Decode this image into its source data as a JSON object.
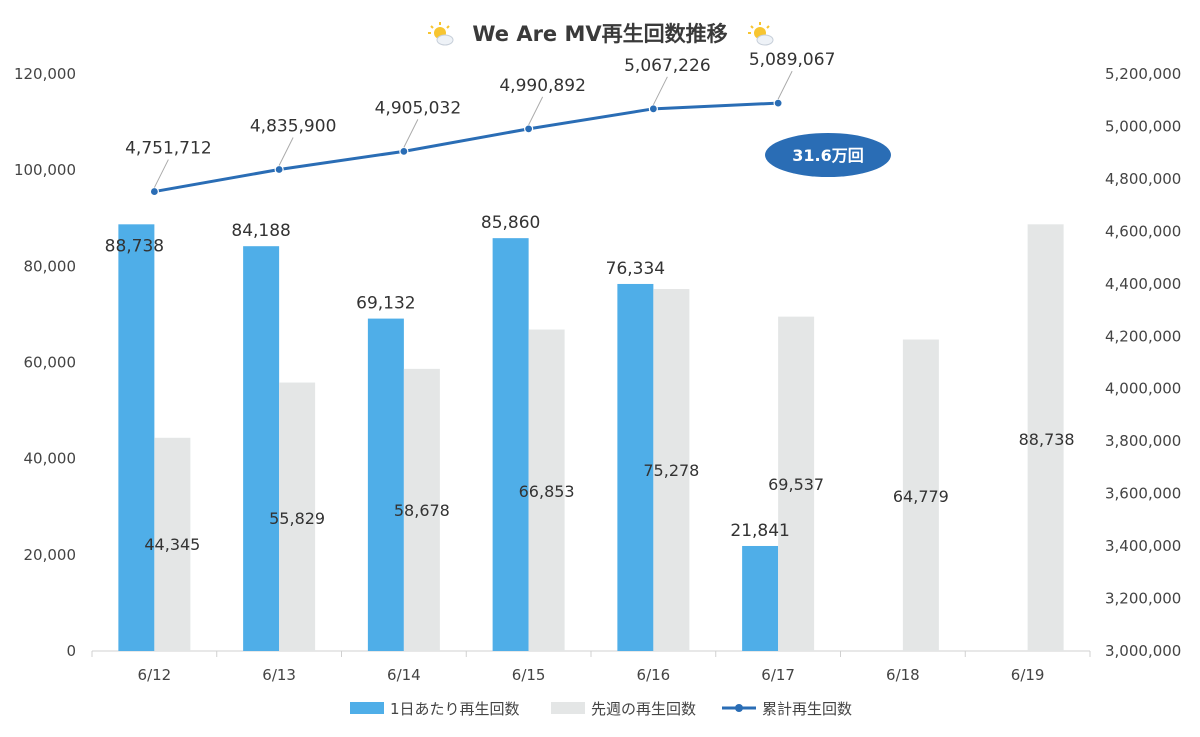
{
  "chart_data": {
    "type": "bar",
    "title": "We Are MV再生回数推移",
    "title_icon": "sun-behind-cloud-icon",
    "categories": [
      "6/12",
      "6/13",
      "6/14",
      "6/15",
      "6/16",
      "6/17",
      "6/18",
      "6/19"
    ],
    "series": [
      {
        "name": "1日あたり再生回数",
        "type": "bar",
        "axis": "left",
        "color": "#4faee8",
        "values": [
          88738,
          84188,
          69132,
          85860,
          76334,
          21841,
          null,
          null
        ],
        "labels": [
          "88,738",
          "84,188",
          "69,132",
          "85,860",
          "76,334",
          "21,841",
          null,
          null
        ]
      },
      {
        "name": "先週の再生回数",
        "type": "bar",
        "axis": "left",
        "color": "#e4e6e6",
        "values": [
          44345,
          55829,
          58678,
          66853,
          75278,
          69537,
          64779,
          88738
        ],
        "labels": [
          "44,345",
          "55,829",
          "58,678",
          "66,853",
          "75,278",
          "69,537",
          "64,779",
          "88,738"
        ]
      },
      {
        "name": "累計再生回数",
        "type": "line",
        "axis": "right",
        "color": "#2a6db5",
        "values": [
          4751712,
          4835900,
          4905032,
          4990892,
          5067226,
          5089067,
          null,
          null
        ],
        "labels": [
          "4,751,712",
          "4,835,900",
          "4,905,032",
          "4,990,892",
          "5,067,226",
          "5,089,067",
          null,
          null
        ]
      }
    ],
    "y_left": {
      "min": 0,
      "max": 120000,
      "ticks": [
        "0",
        "20,000",
        "40,000",
        "60,000",
        "80,000",
        "100,000",
        "120,000"
      ]
    },
    "y_right": {
      "min": 3000000,
      "max": 5200000,
      "ticks": [
        "3,000,000",
        "3,200,000",
        "3,400,000",
        "3,600,000",
        "3,800,000",
        "4,000,000",
        "4,200,000",
        "4,400,000",
        "4,600,000",
        "4,800,000",
        "5,000,000",
        "5,200,000"
      ]
    },
    "annotation": {
      "text": "31.6万回",
      "color": "#2a6db5"
    },
    "legend_position": "bottom",
    "grid": false
  }
}
